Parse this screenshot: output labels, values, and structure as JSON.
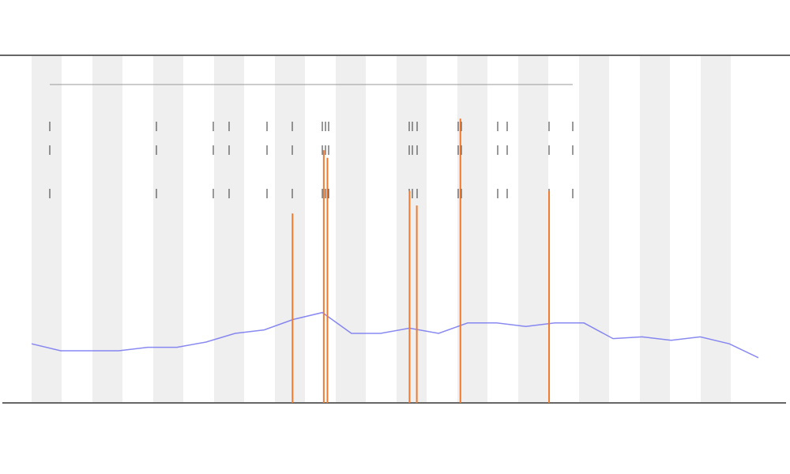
{
  "chart_data": {
    "type": "line",
    "x": [
      0,
      4,
      8,
      12,
      16,
      20,
      24,
      28,
      32,
      36,
      40,
      44,
      48,
      52,
      56,
      60,
      64,
      68,
      72,
      76,
      80,
      84,
      88,
      92,
      96,
      100
    ],
    "series": [
      {
        "color": "#6b6bf0",
        "mark": "line",
        "values": [
          17,
          15,
          15,
          15,
          16,
          16,
          17.5,
          20,
          21,
          24,
          26,
          20,
          20,
          21.5,
          20,
          23,
          23,
          22,
          23,
          23,
          18.5,
          19,
          18,
          19,
          17,
          13
        ]
      },
      {
        "color": "#f07a30",
        "mark": "spike",
        "x": [
          35.9,
          40.2,
          40.7,
          52,
          53,
          59,
          71.2
        ],
        "values": [
          54.5,
          72.7,
          70.5,
          61,
          56.8,
          81.8,
          61
        ]
      }
    ],
    "xlim": [
      0,
      100
    ],
    "ylim": [
      0,
      100
    ]
  }
}
